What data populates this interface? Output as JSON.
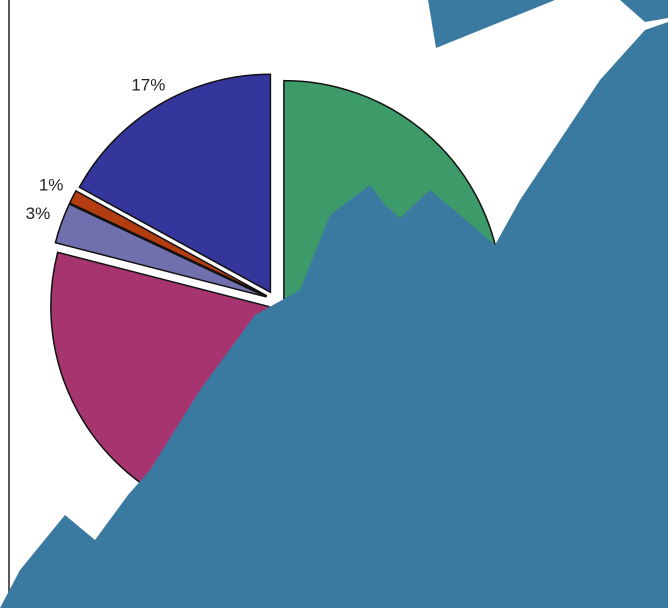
{
  "chart_data": {
    "type": "pie",
    "values": [
      17,
      1,
      3,
      34,
      45
    ],
    "value_labels": [
      "17%",
      "1%",
      "3%",
      null,
      null
    ],
    "colors": [
      "#35369c",
      "#b33c10",
      "#7070ae",
      "#a6346f",
      "#3d9b69"
    ]
  }
}
